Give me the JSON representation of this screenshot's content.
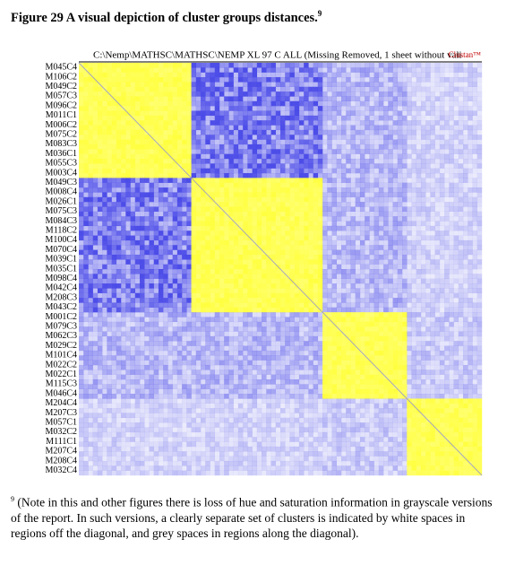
{
  "figure": {
    "title": "Figure 29 A visual depiction of cluster groups distances.",
    "title_note_mark": "9",
    "header": "C:\\Nemp\\MATHSC\\MATHSC\\NEMP XL 97 C ALL (Missing Removed, 1 sheet without vali",
    "brand": "Clustan™",
    "row_labels": [
      "M045C4",
      "M106C2",
      "M049C2",
      "M057C3",
      "M096C2",
      "M011C1",
      "M006C2",
      "M075C2",
      "M083C3",
      "M036C1",
      "M055C3",
      "M003C4",
      "M049C3",
      "M008C4",
      "M026C1",
      "M075C3",
      "M084C3",
      "M118C2",
      "M100C4",
      "M070C4",
      "M039C1",
      "M035C1",
      "M098C4",
      "M042C4",
      "M208C3",
      "M043C2",
      "M001C2",
      "M079C3",
      "M062C3",
      "M029C2",
      "M101C4",
      "M022C2",
      "M022C1",
      "M115C3",
      "M046C4",
      "M204C4",
      "M207C3",
      "M057C1",
      "M032C2",
      "M111C1",
      "M207C4",
      "M208C4",
      "M032C4"
    ]
  },
  "footnote": {
    "mark": "9",
    "text": "(Note in this and other figures there is loss of hue and saturation information in grayscale versions of the report. In such versions, a clearly separate set of clusters is indicated by white spaces in regions off the diagonal, and grey spaces in regions along the diagonal)."
  }
}
